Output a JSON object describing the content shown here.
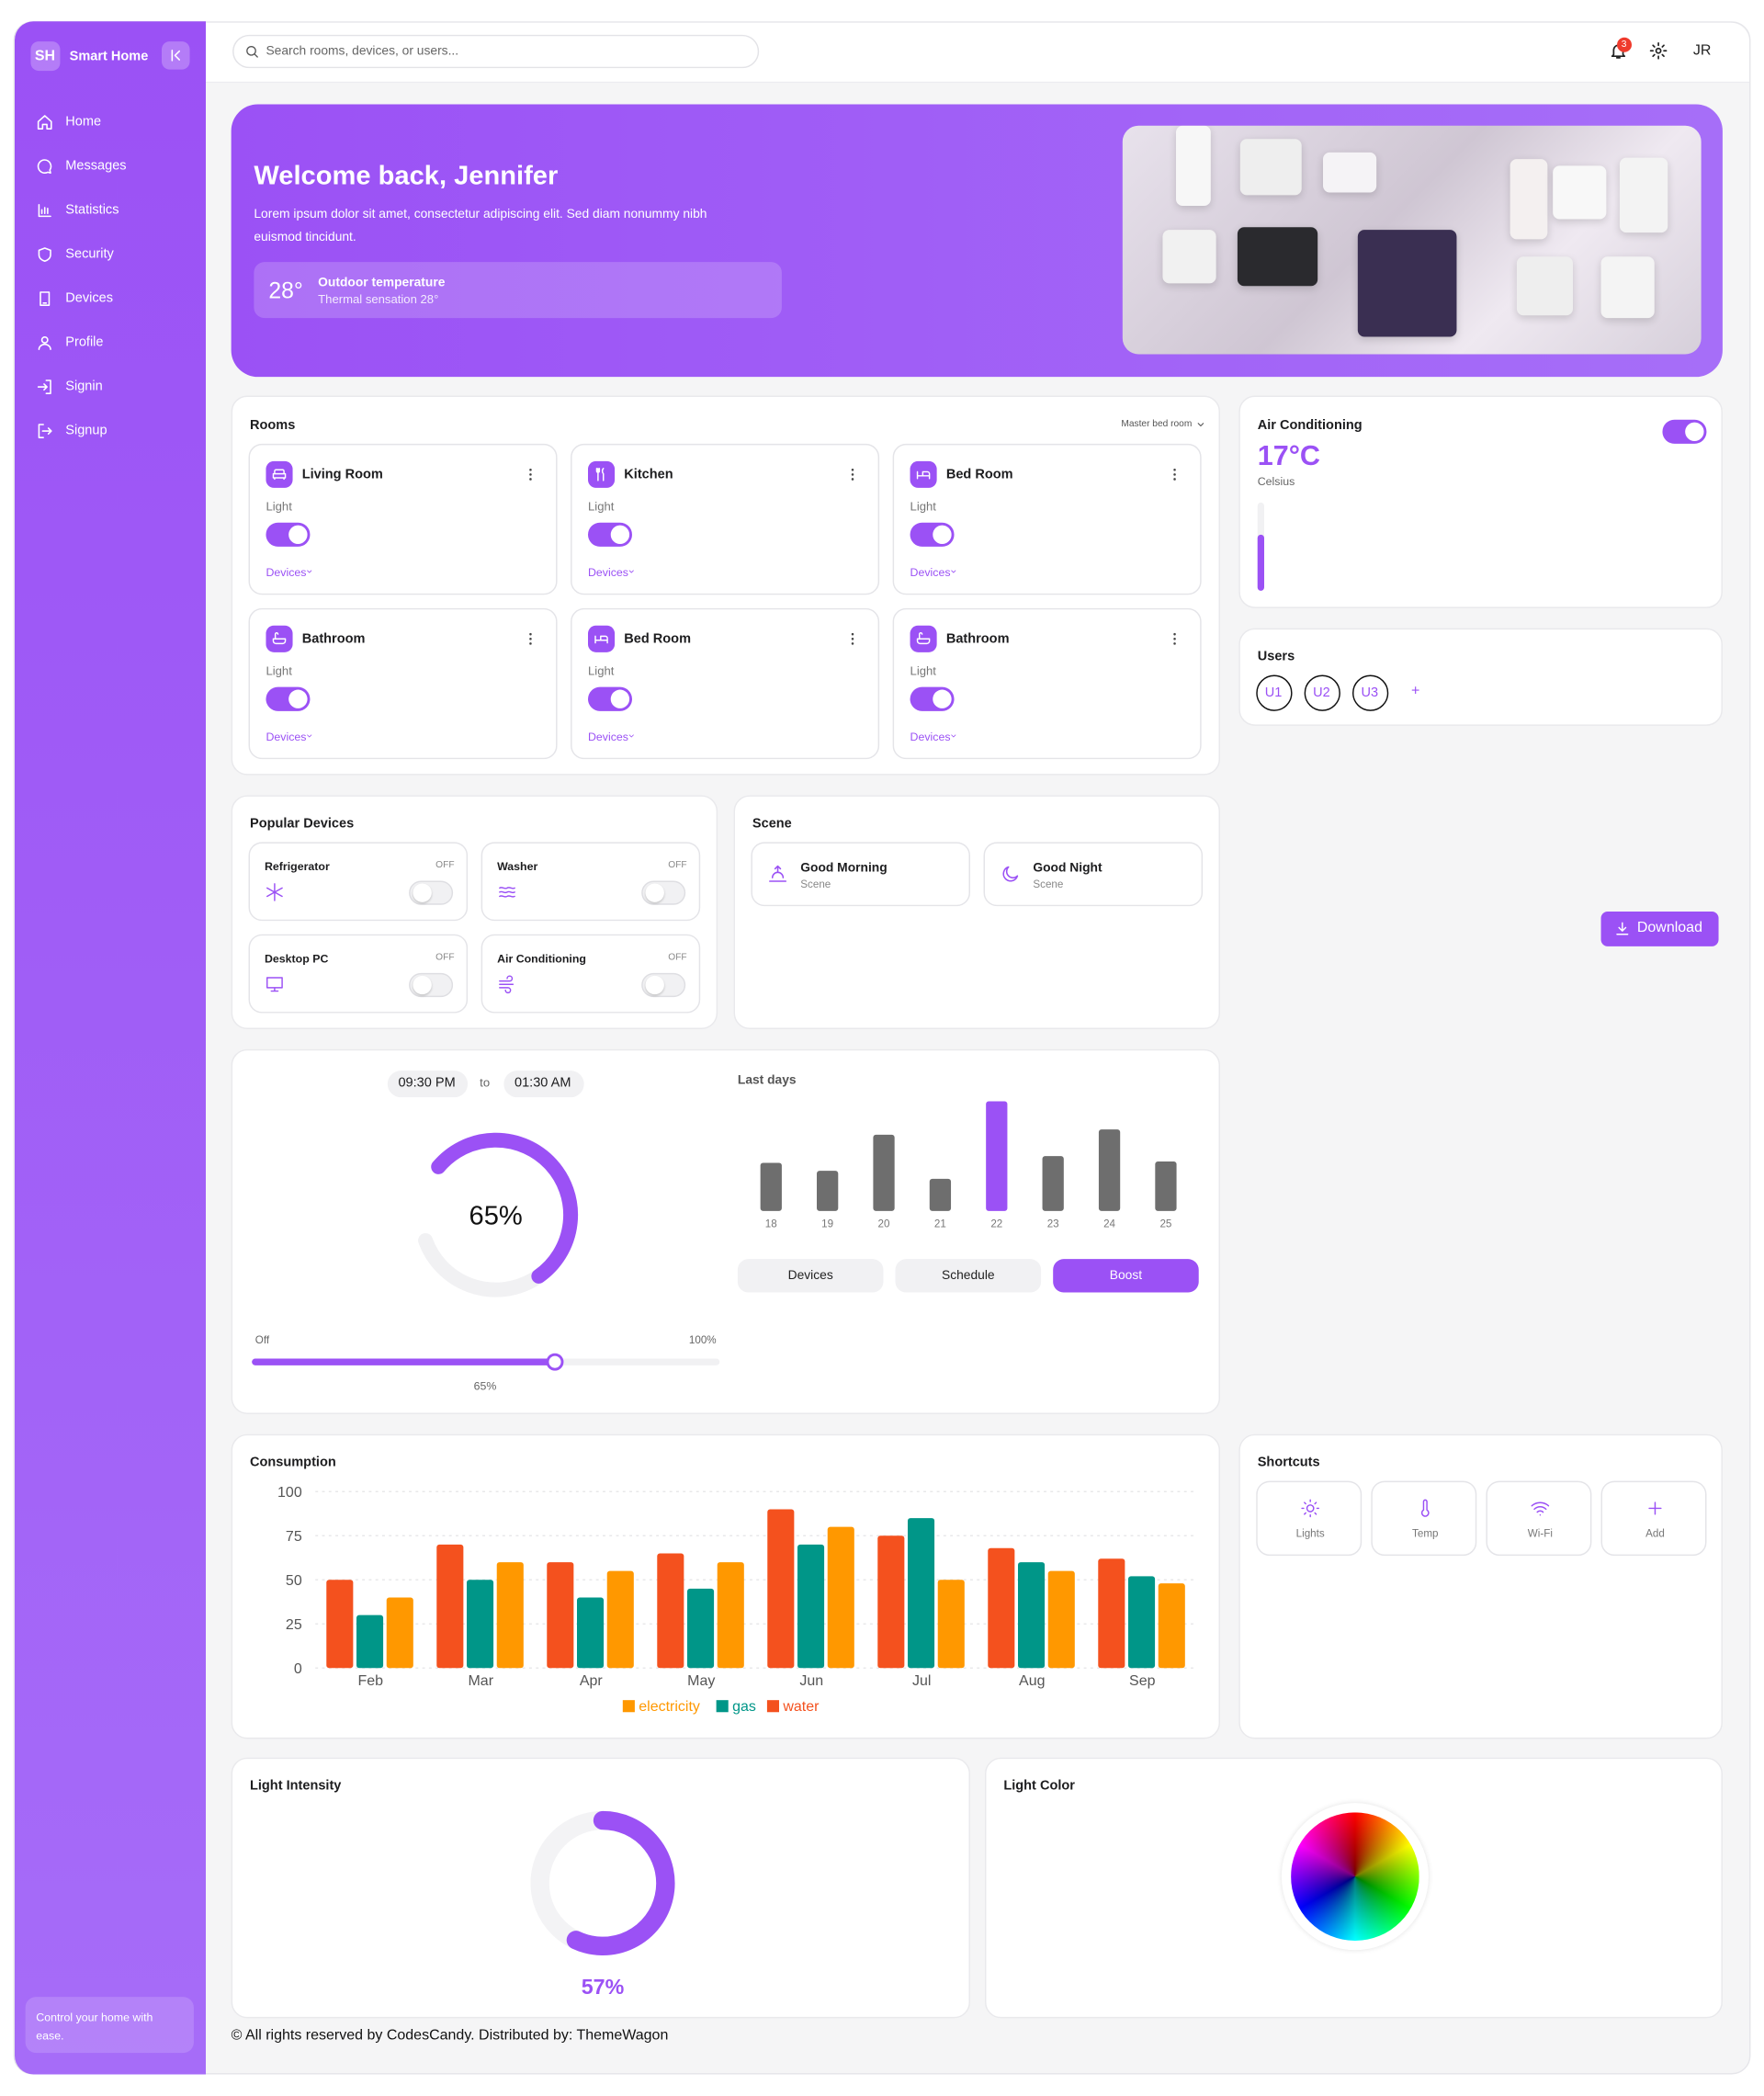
{
  "sidebar": {
    "logo": "SH",
    "brand": "Smart Home",
    "nav": [
      "Home",
      "Messages",
      "Statistics",
      "Security",
      "Devices",
      "Profile",
      "Signin",
      "Signup"
    ],
    "footer": "Control your home with ease."
  },
  "topbar": {
    "search_placeholder": "Search rooms, devices, or users...",
    "notifications": "3",
    "avatar": "JR"
  },
  "hero": {
    "title": "Welcome back, Jennifer",
    "text": "Lorem ipsum dolor sit amet, consectetur adipiscing elit. Sed diam nonummy nibh euismod tincidunt.",
    "temperature": "28°",
    "temperature_label": "Outdoor temperature",
    "temperature_note": "Thermal sensation 28°"
  },
  "rooms": {
    "title": "Rooms",
    "filter": "Master bed room",
    "items": [
      {
        "name": "Living Room",
        "label": "Light",
        "link": "Devices",
        "on": true
      },
      {
        "name": "Kitchen",
        "label": "Light",
        "link": "Devices",
        "on": true
      },
      {
        "name": "Bed Room",
        "label": "Light",
        "link": "Devices",
        "on": true
      },
      {
        "name": "Bathroom",
        "label": "Light",
        "link": "Devices",
        "on": true
      },
      {
        "name": "Bed Room",
        "label": "Light",
        "link": "Devices",
        "on": true
      },
      {
        "name": "Bathroom",
        "label": "Light",
        "link": "Devices",
        "on": true
      }
    ]
  },
  "air_conditioning": {
    "title": "Air Conditioning",
    "value": "17°C",
    "unit": "Celsius",
    "on": true
  },
  "users": {
    "title": "Users",
    "items": [
      "U1",
      "U2",
      "U3"
    ],
    "add": "+"
  },
  "popular_devices": {
    "title": "Popular Devices",
    "items": [
      {
        "name": "Refrigerator",
        "state": "OFF"
      },
      {
        "name": "Washer",
        "state": "OFF"
      },
      {
        "name": "Desktop PC",
        "state": "OFF"
      },
      {
        "name": "Air Conditioning",
        "state": "OFF"
      }
    ]
  },
  "scene": {
    "title": "Scene",
    "items": [
      {
        "name": "Good Morning",
        "label": "Scene"
      },
      {
        "name": "Good Night",
        "label": "Scene"
      }
    ]
  },
  "download": "Download",
  "thermostat": {
    "from": "09:30 PM",
    "to_label": "to",
    "to": "01:30 AM",
    "gauge": {
      "value": 65,
      "label": "65%",
      "lim": [
        0,
        100
      ]
    },
    "slider": {
      "min_label": "Off",
      "max_label": "100%",
      "value": 65,
      "label": "65%",
      "lim": [
        0,
        100
      ]
    },
    "last_days": {
      "type": "bar",
      "title": "Last days",
      "categories": [
        "18",
        "19",
        "20",
        "21",
        "22",
        "23",
        "24",
        "25"
      ],
      "values": [
        36,
        30,
        57,
        24,
        82,
        41,
        61,
        37
      ],
      "ylim": [
        0,
        90
      ],
      "color": "#6e6e6e",
      "highlight": "22",
      "highlight_color": "#9b51f5"
    },
    "tabs": [
      "Devices",
      "Schedule",
      "Boost"
    ],
    "active_tab": "Boost"
  },
  "consumption": {
    "type": "bar",
    "title": "Consumption",
    "categories": [
      "Feb",
      "Mar",
      "Apr",
      "May",
      "Jun",
      "Jul",
      "Aug",
      "Sep"
    ],
    "series": [
      {
        "name": "electricity",
        "color": "#ff9800",
        "values": [
          40,
          60,
          55,
          60,
          80,
          50,
          55,
          48
        ]
      },
      {
        "name": "gas",
        "color": "#009688",
        "values": [
          30,
          50,
          40,
          45,
          70,
          85,
          60,
          52
        ]
      },
      {
        "name": "water",
        "color": "#f4511e",
        "values": [
          50,
          70,
          60,
          65,
          90,
          75,
          68,
          62
        ]
      }
    ],
    "ylim": [
      0,
      100
    ],
    "yticks": [
      0,
      25,
      50,
      75,
      100
    ],
    "grid": true,
    "legend": "bottom"
  },
  "shortcuts": {
    "title": "Shortcuts",
    "items": [
      "Lights",
      "Temp",
      "Wi-Fi",
      "Add"
    ]
  },
  "light_intensity": {
    "title": "Light Intensity",
    "value": 57,
    "label": "57%",
    "lim": [
      0,
      100
    ]
  },
  "light_color": {
    "title": "Light Color"
  },
  "footer": "© All rights reserved by CodesCandy. Distributed by: ThemeWagon"
}
